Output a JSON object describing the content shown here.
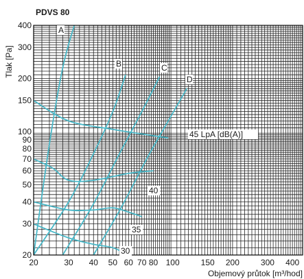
{
  "chart_data": {
    "type": "line",
    "title": "PDVS 80",
    "xlabel": "Objemový průtok [m³/hod]",
    "ylabel": "Tlak [Pa]",
    "xlim": [
      20,
      450
    ],
    "ylim": [
      20,
      400
    ],
    "xscale": "log",
    "yscale": "log",
    "grid": true,
    "x_ticks": [
      20,
      30,
      40,
      50,
      60,
      70,
      80,
      100,
      150,
      200,
      300,
      400
    ],
    "y_ticks": [
      20,
      30,
      40,
      50,
      60,
      70,
      80,
      90,
      100,
      150,
      200,
      300,
      400
    ],
    "x_tick_labels": [
      "20",
      "30",
      "40",
      "50",
      "60",
      "70",
      "80",
      "100",
      "150",
      "200",
      "300",
      "400"
    ],
    "y_tick_labels": [
      "20",
      "30",
      "40",
      "50",
      "60",
      "70",
      "80",
      "90",
      "100",
      "150",
      "200",
      "300",
      "400"
    ],
    "color": "#4ab8c8",
    "series": [
      {
        "name": "A",
        "x": [
          20,
          24,
          28,
          32
        ],
        "y": [
          20,
          85,
          230,
          400
        ]
      },
      {
        "name": "B",
        "x": [
          20,
          30,
          40,
          50,
          58
        ],
        "y": [
          20,
          40,
          75,
          130,
          210
        ]
      },
      {
        "name": "C",
        "x": [
          28,
          40,
          55,
          70,
          86
        ],
        "y": [
          20,
          39,
          78,
          130,
          205
        ]
      },
      {
        "name": "D",
        "x": [
          40,
          55,
          75,
          95,
          118
        ],
        "y": [
          20,
          37,
          72,
          115,
          176
        ]
      },
      {
        "name": "45 LpA [dB(A)]",
        "x": [
          20,
          30,
          50,
          70,
          95
        ],
        "y": [
          150,
          115,
          103,
          97,
          92
        ]
      },
      {
        "name": "40",
        "x": [
          20,
          25,
          30,
          40,
          60,
          80
        ],
        "y": [
          70,
          62,
          53,
          53,
          58,
          60
        ]
      },
      {
        "name": "35",
        "x": [
          20,
          30,
          40,
          50,
          60,
          70
        ],
        "y": [
          40,
          36,
          36,
          37,
          35,
          33
        ]
      },
      {
        "name": "30",
        "x": [
          20,
          30,
          40,
          50,
          60,
          70
        ],
        "y": [
          30,
          25,
          23,
          22,
          20,
          19
        ]
      }
    ],
    "curve_label_texts": [
      "A",
      "B",
      "C",
      "D",
      "45 LpA [dB(A)]",
      "40",
      "35",
      "30"
    ]
  }
}
